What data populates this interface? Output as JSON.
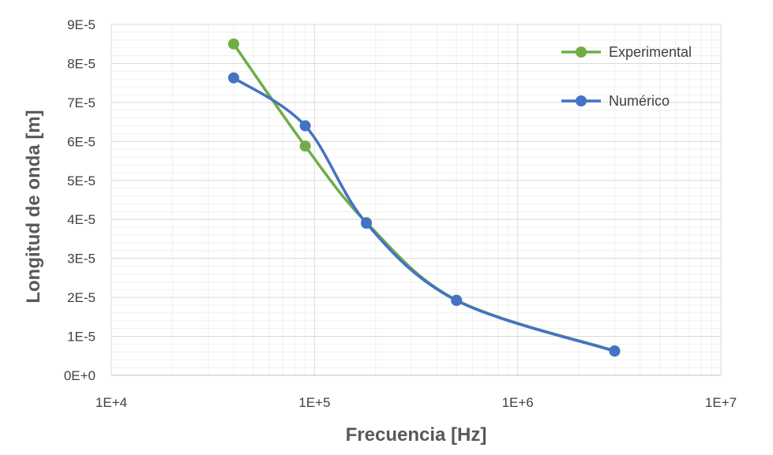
{
  "chart_data": {
    "type": "line",
    "xscale": "log",
    "xlabel": "Frecuencia [Hz]",
    "ylabel": "Longitud de onda [m]",
    "xlim": [
      10000,
      10000000
    ],
    "ylim": [
      0,
      9e-05
    ],
    "x_ticks": [
      10000,
      100000,
      1000000,
      10000000
    ],
    "x_tick_labels": [
      "1E+4",
      "1E+5",
      "1E+6",
      "1E+7"
    ],
    "y_ticks": [
      0,
      1e-05,
      2e-05,
      3e-05,
      4e-05,
      5e-05,
      6e-05,
      7e-05,
      8e-05,
      9e-05
    ],
    "y_tick_labels": [
      "0E+0",
      "1E-5",
      "2E-5",
      "3E-5",
      "4E-5",
      "5E-5",
      "6E-5",
      "7E-5",
      "8E-5",
      "9E-5"
    ],
    "grid": true,
    "minor_grid": true,
    "smooth": true,
    "legend_position": "top-right",
    "series": [
      {
        "name": "Experimental",
        "color": "#70AD47",
        "x": [
          40000,
          90000,
          180000,
          500000,
          3000000
        ],
        "y": [
          8.5e-05,
          5.88e-05,
          3.92e-05,
          1.93e-05,
          6.3e-06
        ]
      },
      {
        "name": "Numérico",
        "color": "#4472C4",
        "x": [
          40000,
          90000,
          180000,
          500000,
          3000000
        ],
        "y": [
          7.63e-05,
          6.4e-05,
          3.9e-05,
          1.92e-05,
          6.2e-06
        ]
      }
    ]
  }
}
